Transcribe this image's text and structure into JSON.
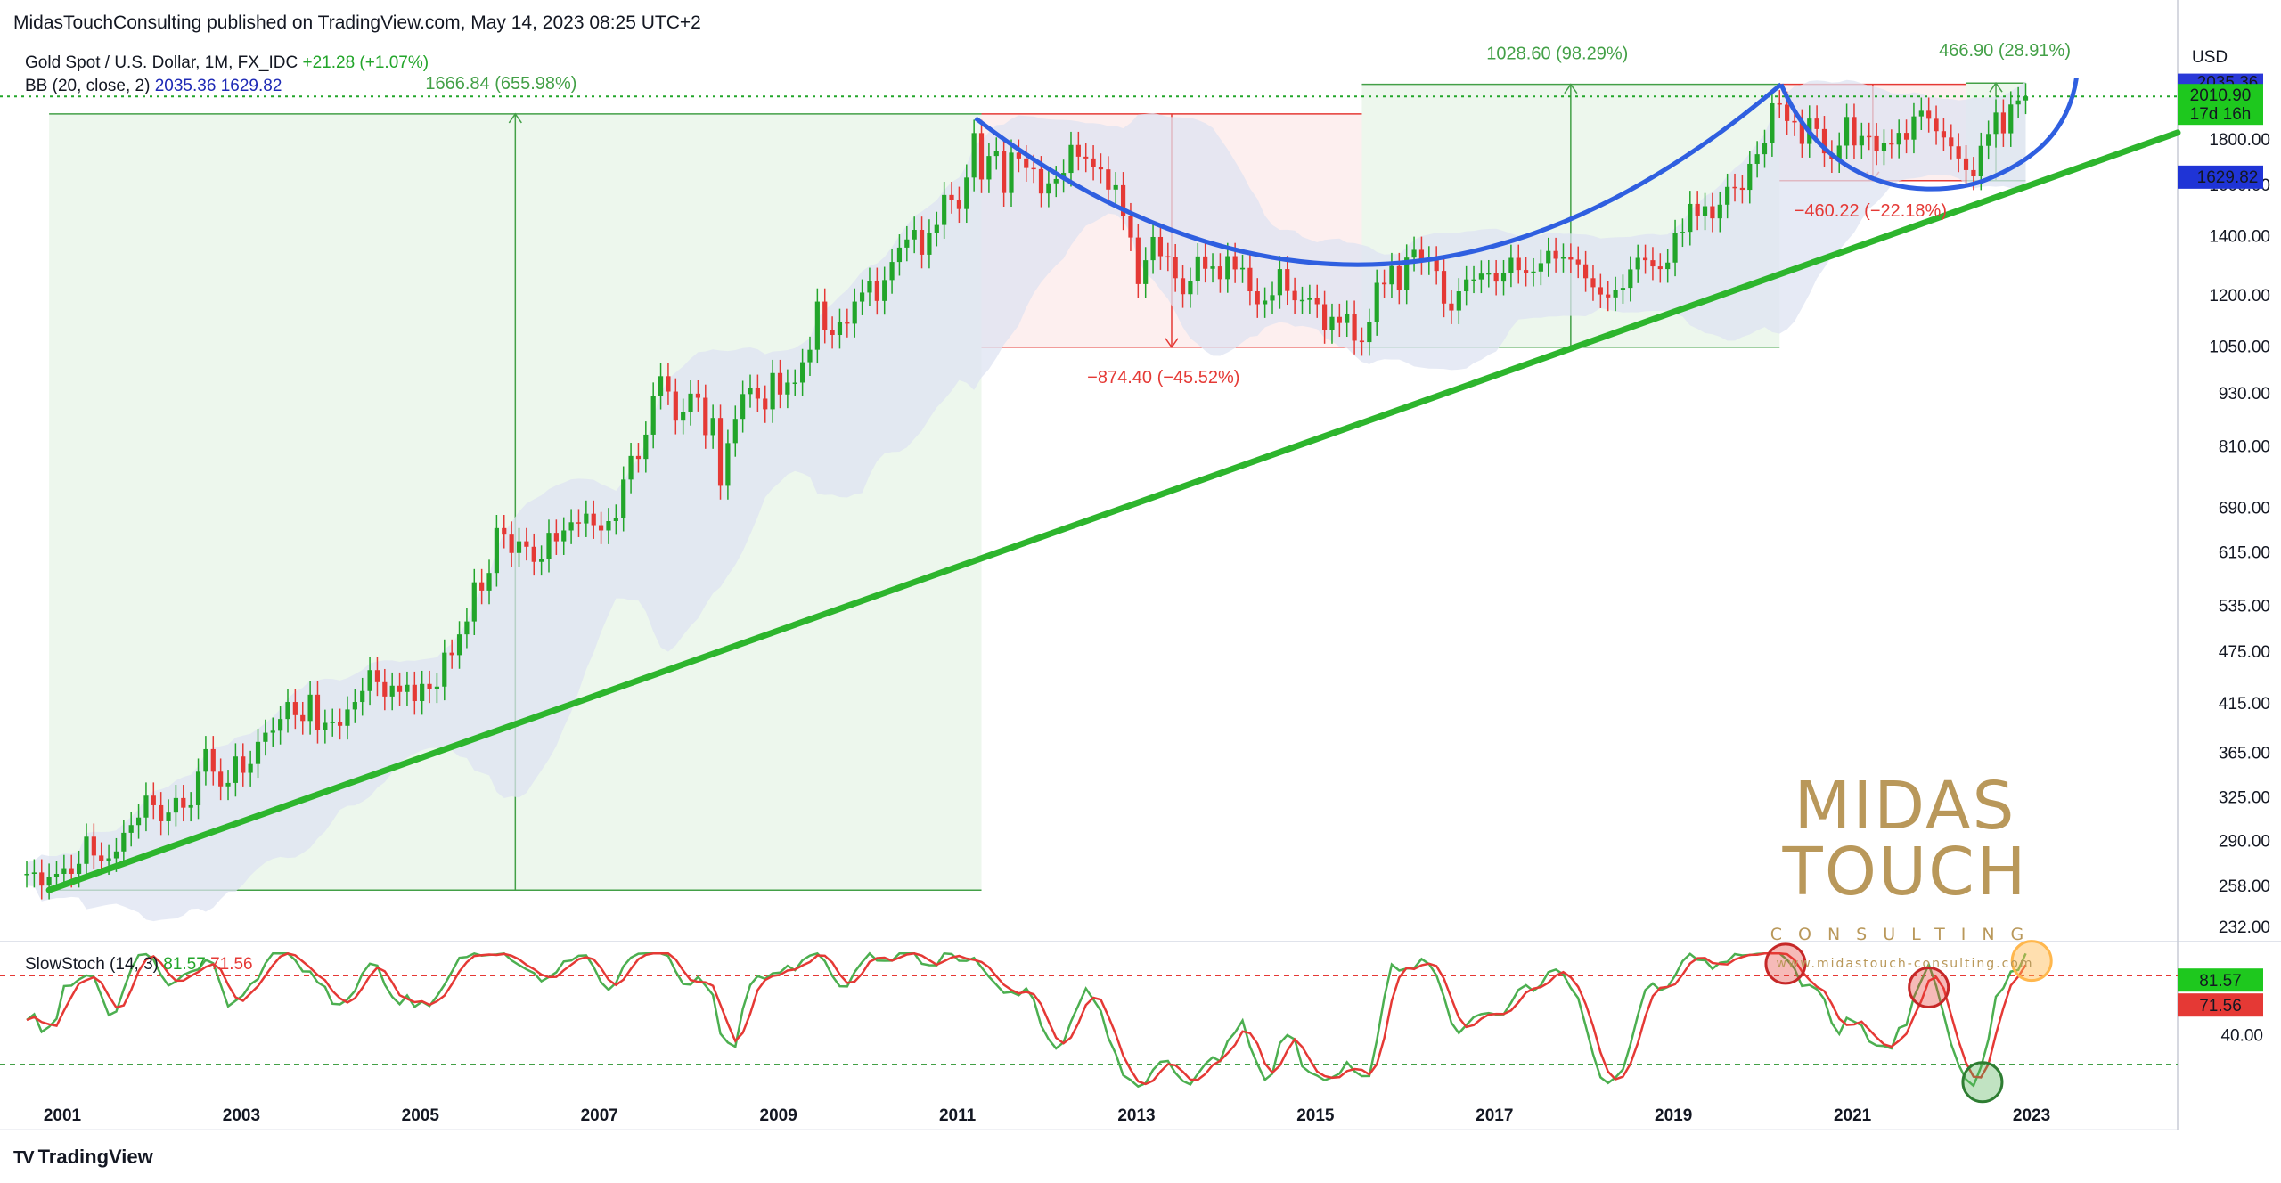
{
  "header": {
    "publisher_line": "MidasTouchConsulting published on TradingView.com, May 14, 2023 08:25 UTC+2"
  },
  "legend": {
    "symbol": "Gold Spot / U.S. Dollar, 1M, FX_IDC",
    "change": "+21.28 (+1.07%)",
    "bb_label": "BB (20, close, 2)",
    "bb_upper": "2035.36",
    "bb_lower": "1629.82"
  },
  "stoch_legend": {
    "label": "SlowStoch (14, 3)",
    "k": "81.57",
    "d": "71.56"
  },
  "footer": {
    "logo": "TV",
    "brand": "TradingView"
  },
  "brand": {
    "name": "MIDAS TOUCH",
    "sub": "CONSULTING",
    "url": "www.midastouch-consulting.com"
  },
  "colors": {
    "up": "#22a52a",
    "down": "#e53935",
    "trend": "#2db52d",
    "curve": "#2f5fe0",
    "bb_fill": "#dde3f2",
    "brand_gold": "#b9985a"
  },
  "chart_data": {
    "type": "candlestick",
    "title": "Gold Spot / U.S. Dollar, 1M, FX_IDC",
    "currency": "USD",
    "y_scale": "log",
    "price_ticks": [
      232,
      258,
      290,
      325,
      365,
      415,
      475,
      535,
      615,
      690,
      810,
      930,
      1050,
      1200,
      1400,
      1600,
      1800
    ],
    "x_ticks": [
      "2001",
      "2003",
      "2005",
      "2007",
      "2009",
      "2011",
      "2013",
      "2015",
      "2017",
      "2019",
      "2021",
      "2023"
    ],
    "price_labels": {
      "bb_upper": "2035.36",
      "last": "2010.90",
      "countdown": "17d 16h",
      "bb_lower": "1629.82"
    },
    "annotations": [
      {
        "text": "1666.84 (655.98%)",
        "from": 255,
        "to": 1921,
        "start": "2001-04",
        "end": "2011-09",
        "color": "green"
      },
      {
        "text": "−874.40 (−45.52%)",
        "from": 1921,
        "to": 1047,
        "start": "2011-09",
        "end": "2015-12",
        "color": "red"
      },
      {
        "text": "1028.60 (98.29%)",
        "from": 1047,
        "to": 2075,
        "start": "2015-12",
        "end": "2020-08",
        "color": "green"
      },
      {
        "text": "−460.22 (−22.18%)",
        "from": 2075,
        "to": 1615,
        "start": "2020-08",
        "end": "2022-09",
        "color": "red"
      },
      {
        "text": "466.90 (28.91%)",
        "from": 1615,
        "to": 2082,
        "start": "2022-09",
        "end": "2023-05",
        "color": "green"
      }
    ],
    "closes": {
      "2001": [
        266,
        267,
        258,
        264,
        266,
        270,
        266,
        273,
        293,
        279,
        275,
        277
      ],
      "2002": [
        282,
        296,
        302,
        308,
        326,
        318,
        305,
        312,
        324,
        316,
        318,
        347
      ],
      "2003": [
        368,
        347,
        334,
        337,
        361,
        346,
        354,
        375,
        384,
        386,
        398,
        416
      ],
      "2004": [
        402,
        396,
        424,
        387,
        394,
        395,
        391,
        408,
        416,
        428,
        452,
        438
      ],
      "2005": [
        422,
        434,
        427,
        435,
        417,
        436,
        430,
        433,
        473,
        470,
        496,
        513
      ],
      "2006": [
        568,
        556,
        582,
        654,
        643,
        613,
        632,
        623,
        599,
        604,
        646,
        632
      ],
      "2007": [
        650,
        664,
        662,
        679,
        659,
        650,
        666,
        672,
        742,
        789,
        783,
        834
      ],
      "2008": [
        923,
        971,
        933,
        865,
        885,
        928,
        918,
        833,
        871,
        730,
        816,
        869
      ],
      "2009": [
        927,
        942,
        916,
        891,
        979,
        926,
        955,
        955,
        1007,
        1040,
        1179,
        1096
      ],
      "2010": [
        1081,
        1118,
        1113,
        1179,
        1207,
        1244,
        1181,
        1247,
        1307,
        1357,
        1386,
        1421
      ],
      "2011": [
        1332,
        1411,
        1439,
        1556,
        1536,
        1500,
        1628,
        1828,
        1620,
        1722,
        1746,
        1564
      ],
      "2012": [
        1737,
        1711,
        1669,
        1664,
        1562,
        1604,
        1622,
        1648,
        1772,
        1719,
        1711,
        1675
      ],
      "2013": [
        1663,
        1578,
        1596,
        1472,
        1393,
        1234,
        1313,
        1395,
        1327,
        1323,
        1253,
        1202
      ],
      "2014": [
        1244,
        1326,
        1284,
        1292,
        1250,
        1327,
        1282,
        1287,
        1211,
        1171,
        1182,
        1199
      ],
      "2015": [
        1283,
        1212,
        1183,
        1184,
        1190,
        1171,
        1095,
        1133,
        1115,
        1142,
        1065,
        1061
      ],
      "2016": [
        1118,
        1238,
        1233,
        1293,
        1214,
        1322,
        1349,
        1309,
        1316,
        1277,
        1173,
        1152
      ],
      "2017": [
        1211,
        1249,
        1249,
        1268,
        1269,
        1242,
        1269,
        1321,
        1280,
        1271,
        1275,
        1303
      ],
      "2018": [
        1345,
        1318,
        1325,
        1315,
        1299,
        1253,
        1224,
        1201,
        1192,
        1215,
        1222,
        1282
      ],
      "2019": [
        1321,
        1313,
        1292,
        1283,
        1305,
        1409,
        1414,
        1520,
        1472,
        1511,
        1464,
        1517
      ],
      "2020": [
        1589,
        1585,
        1577,
        1687,
        1730,
        1781,
        1975,
        1968,
        1886,
        1879,
        1777,
        1898
      ],
      "2021": [
        1847,
        1734,
        1708,
        1769,
        1906,
        1770,
        1814,
        1813,
        1743,
        1783,
        1774,
        1829
      ],
      "2022": [
        1797,
        1909,
        1937,
        1897,
        1837,
        1807,
        1766,
        1711,
        1660,
        1633,
        1768,
        1824
      ],
      "2023": [
        1928,
        1827,
        1969,
        1990,
        2011
      ]
    },
    "slow_stoch": {
      "k_last": 81.57,
      "d_last": 71.56,
      "levels": [
        80,
        20
      ],
      "ticks": [
        40
      ]
    }
  }
}
